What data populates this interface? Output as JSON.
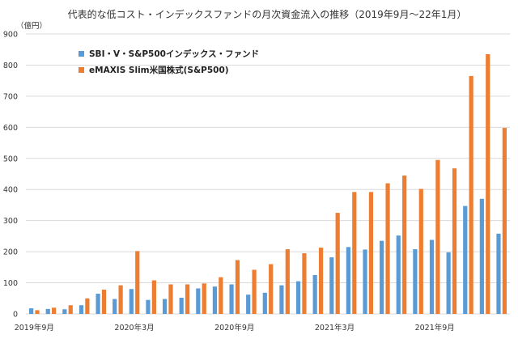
{
  "chart_data": {
    "type": "bar",
    "title": "代表的な低コスト・インデックスファンドの月次資金流入の推移（2019年9月～22年1月）",
    "y_unit_label": "（億円）",
    "ylim": [
      0,
      900
    ],
    "y_ticks": [
      0,
      100,
      200,
      300,
      400,
      500,
      600,
      700,
      800,
      900
    ],
    "grid": "horizontal",
    "legend_position": "top-left",
    "categories": [
      "2019年9月",
      "2019年10月",
      "2019年11月",
      "2019年12月",
      "2020年1月",
      "2020年2月",
      "2020年3月",
      "2020年4月",
      "2020年5月",
      "2020年6月",
      "2020年7月",
      "2020年8月",
      "2020年9月",
      "2020年10月",
      "2020年11月",
      "2020年12月",
      "2021年1月",
      "2021年2月",
      "2021年3月",
      "2021年4月",
      "2021年5月",
      "2021年6月",
      "2021年7月",
      "2021年8月",
      "2021年9月",
      "2021年10月",
      "2021年11月",
      "2021年12月",
      "2022年1月"
    ],
    "x_tick_labels": [
      {
        "index": 0,
        "label": "2019年9月"
      },
      {
        "index": 6,
        "label": "2020年3月"
      },
      {
        "index": 12,
        "label": "2020年9月"
      },
      {
        "index": 18,
        "label": "2021年3月"
      },
      {
        "index": 24,
        "label": "2021年9月"
      }
    ],
    "series": [
      {
        "name": "SBI・V・S&P500インデックス・ファンド",
        "color": "#5b9bd5",
        "values": [
          18,
          16,
          15,
          28,
          65,
          48,
          80,
          45,
          48,
          52,
          82,
          88,
          95,
          62,
          68,
          92,
          105,
          125,
          182,
          215,
          207,
          235,
          252,
          208,
          238,
          198,
          347,
          370,
          258
        ]
      },
      {
        "name": "eMAXIS Slim米国株式(S&P500)",
        "color": "#ed7d31",
        "values": [
          12,
          20,
          28,
          50,
          78,
          92,
          202,
          108,
          95,
          95,
          98,
          118,
          173,
          142,
          160,
          208,
          195,
          213,
          325,
          392,
          392,
          420,
          445,
          402,
          495,
          468,
          765,
          835,
          598
        ]
      }
    ]
  }
}
